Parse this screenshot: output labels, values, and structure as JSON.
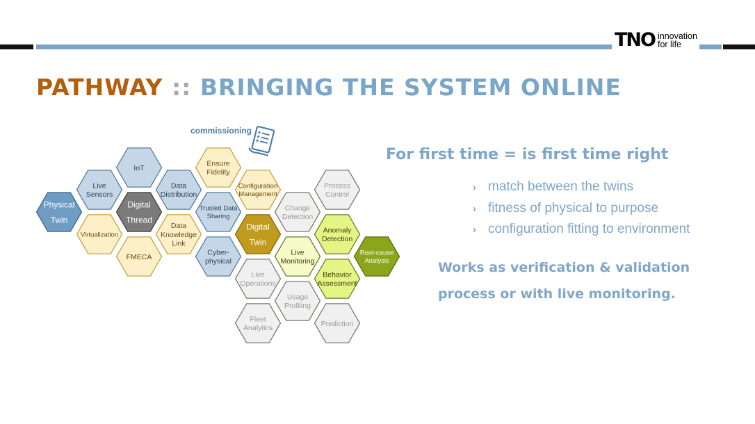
{
  "header": {
    "logo_mark": "TNO",
    "logo_line1": "innovation",
    "logo_line2": "for life"
  },
  "title": {
    "part1": "PATHWAY",
    "separator": " :: ",
    "part2": "BRINGING THE SYSTEM ONLINE"
  },
  "diagram": {
    "commissioning_label": "commissioning",
    "hexes": [
      {
        "id": "physical-twin",
        "lines": [
          "Physical",
          "Twin"
        ],
        "style": "blue-dark"
      },
      {
        "id": "live-sensors",
        "lines": [
          "Live",
          "Sensors"
        ],
        "style": "blue-light"
      },
      {
        "id": "virtualization",
        "lines": [
          "Virtualization"
        ],
        "style": "yellow-light"
      },
      {
        "id": "iot",
        "lines": [
          "IoT"
        ],
        "style": "blue-light"
      },
      {
        "id": "digital-thread",
        "lines": [
          "Digital",
          "Thread"
        ],
        "style": "gray-dark"
      },
      {
        "id": "fmeca",
        "lines": [
          "FMECA"
        ],
        "style": "yellow-light"
      },
      {
        "id": "data-distribution",
        "lines": [
          "Data",
          "Distribution"
        ],
        "style": "blue-light"
      },
      {
        "id": "data-knowledge-link",
        "lines": [
          "Data",
          "Knowledge",
          "Link"
        ],
        "style": "yellow-light"
      },
      {
        "id": "ensure-fidelity",
        "lines": [
          "Ensure",
          "Fidelity"
        ],
        "style": "yellow-light"
      },
      {
        "id": "trusted-data-sharing",
        "lines": [
          "Trusted Data",
          "Sharing"
        ],
        "style": "blue-light"
      },
      {
        "id": "cyber-physical",
        "lines": [
          "Cyber-",
          "physical"
        ],
        "style": "blue-light"
      },
      {
        "id": "configuration-management",
        "lines": [
          "Configuration",
          "Management"
        ],
        "style": "yellow-light"
      },
      {
        "id": "digital-twin",
        "lines": [
          "Digital",
          "Twin"
        ],
        "style": "gold"
      },
      {
        "id": "live-operations",
        "lines": [
          "Live",
          "Operations"
        ],
        "style": "gray-light"
      },
      {
        "id": "fleet-analytics",
        "lines": [
          "Fleet",
          "Analytics"
        ],
        "style": "gray-light"
      },
      {
        "id": "change-detection",
        "lines": [
          "Change",
          "Detection"
        ],
        "style": "gray-light"
      },
      {
        "id": "live-monitoring",
        "lines": [
          "Live",
          "Monitoring"
        ],
        "style": "yellowgreen-light"
      },
      {
        "id": "usage-profiling",
        "lines": [
          "Usage",
          "Profiling"
        ],
        "style": "gray-light"
      },
      {
        "id": "process-control",
        "lines": [
          "Process",
          "Control"
        ],
        "style": "gray-light"
      },
      {
        "id": "anomaly-detection",
        "lines": [
          "Anomaly",
          "Detection"
        ],
        "style": "yellowgreen"
      },
      {
        "id": "behavior-assessment",
        "lines": [
          "Behavior",
          "Assessment"
        ],
        "style": "yellowgreen"
      },
      {
        "id": "prediction",
        "lines": [
          "Prediction"
        ],
        "style": "gray-light"
      },
      {
        "id": "root-cause-analysis",
        "lines": [
          "Root-cause",
          "Analysis"
        ],
        "style": "olive"
      }
    ],
    "styles": {
      "blue-dark": {
        "fill": "#6e9cc2",
        "stroke": "#3e6a8e",
        "text": "#ffffff"
      },
      "blue-light": {
        "fill": "#c5d7e6",
        "stroke": "#557d9e",
        "text": "#27435c"
      },
      "yellow-light": {
        "fill": "#fbf0c8",
        "stroke": "#c9a23d",
        "text": "#6a4a12"
      },
      "gray-dark": {
        "fill": "#7b7b7b",
        "stroke": "#444444",
        "text": "#ffffff"
      },
      "gold": {
        "fill": "#c19b1d",
        "stroke": "#86670b",
        "text": "#ffffff"
      },
      "gray-light": {
        "fill": "#f0f0f0",
        "stroke": "#7a7a6a",
        "text": "#9a9a9a"
      },
      "yellowgreen-light": {
        "fill": "#f6fbc8",
        "stroke": "#6b7a2a",
        "text": "#3a3a10"
      },
      "yellowgreen": {
        "fill": "#e5f585",
        "stroke": "#6b7a2a",
        "text": "#3a3a10"
      },
      "olive": {
        "fill": "#8ca51b",
        "stroke": "#5b6d0d",
        "text": "#ffffff"
      }
    }
  },
  "headline": "For first time = is first time right",
  "bullets": [
    "match between the twins",
    "fitness of physical to purpose",
    "configuration fitting to environment"
  ],
  "bullet_marker": "›",
  "footer": {
    "line1": "Works as verification & validation",
    "line2": "process or with live monitoring."
  },
  "colors": {
    "accent_orange": "#b35f0c",
    "accent_blue": "#7fa6c8",
    "separator_gray": "#a8a8a8"
  }
}
